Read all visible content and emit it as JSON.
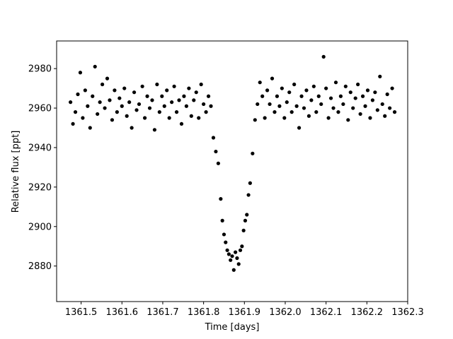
{
  "chart_data": {
    "type": "scatter",
    "title": "",
    "xlabel": "Time [days]",
    "ylabel": "Relative flux [ppt]",
    "xlim": [
      1361.44,
      1362.3
    ],
    "ylim": [
      2862,
      2994
    ],
    "xticks": [
      1361.5,
      1361.6,
      1361.7,
      1361.8,
      1361.9,
      1362.0,
      1362.1,
      1362.2,
      1362.3
    ],
    "xtick_labels": [
      "1361.5",
      "1361.6",
      "1361.7",
      "1361.8",
      "1361.9",
      "1362.0",
      "1362.1",
      "1362.2",
      "1362.3"
    ],
    "yticks": [
      2880,
      2900,
      2920,
      2940,
      2960,
      2980
    ],
    "ytick_labels": [
      "2880",
      "2900",
      "2920",
      "2940",
      "2960",
      "2980"
    ],
    "grid": false,
    "marker_color": "#000000",
    "series": [
      {
        "x": [
          1361.474,
          1361.48,
          1361.486,
          1361.492,
          1361.498,
          1361.504,
          1361.51,
          1361.516,
          1361.522,
          1361.528,
          1361.534,
          1361.54,
          1361.546,
          1361.552,
          1361.558,
          1361.564,
          1361.57,
          1361.576,
          1361.582,
          1361.588,
          1361.594,
          1361.6,
          1361.606,
          1361.612,
          1361.618,
          1361.624,
          1361.63,
          1361.636,
          1361.642,
          1361.65,
          1361.656,
          1361.662,
          1361.668,
          1361.674,
          1361.68,
          1361.686,
          1361.692,
          1361.698,
          1361.704,
          1361.71,
          1361.716,
          1361.722,
          1361.728,
          1361.734,
          1361.74,
          1361.746,
          1361.752,
          1361.758,
          1361.764,
          1361.77,
          1361.776,
          1361.782,
          1361.788,
          1361.794,
          1361.8,
          1361.806,
          1361.812,
          1361.818,
          1361.824,
          1361.83,
          1361.836,
          1361.842,
          1361.846,
          1361.85,
          1361.854,
          1361.858,
          1361.862,
          1361.866,
          1361.87,
          1361.874,
          1361.878,
          1361.882,
          1361.886,
          1361.89,
          1361.894,
          1361.898,
          1361.902,
          1361.906,
          1361.91,
          1361.914,
          1361.92,
          1361.926,
          1361.932,
          1361.938,
          1361.944,
          1361.95,
          1361.956,
          1361.962,
          1361.968,
          1361.974,
          1361.98,
          1361.986,
          1361.992,
          1361.998,
          1362.004,
          1362.01,
          1362.016,
          1362.022,
          1362.028,
          1362.034,
          1362.04,
          1362.046,
          1362.052,
          1362.058,
          1362.064,
          1362.07,
          1362.076,
          1362.082,
          1362.088,
          1362.094,
          1362.1,
          1362.106,
          1362.112,
          1362.118,
          1362.124,
          1362.13,
          1362.136,
          1362.142,
          1362.148,
          1362.154,
          1362.16,
          1362.166,
          1362.172,
          1362.178,
          1362.184,
          1362.19,
          1362.196,
          1362.202,
          1362.208,
          1362.214,
          1362.22,
          1362.226,
          1362.232,
          1362.238,
          1362.244,
          1362.25,
          1362.256,
          1362.262,
          1362.268
        ],
        "y": [
          2963,
          2952,
          2958,
          2967,
          2978,
          2955,
          2969,
          2961,
          2950,
          2966,
          2981,
          2957,
          2963,
          2972,
          2960,
          2975,
          2964,
          2954,
          2969,
          2958,
          2965,
          2961,
          2970,
          2956,
          2963,
          2950,
          2968,
          2959,
          2962,
          2971,
          2955,
          2966,
          2960,
          2964,
          2949,
          2972,
          2958,
          2966,
          2961,
          2969,
          2955,
          2963,
          2971,
          2958,
          2964,
          2952,
          2966,
          2961,
          2970,
          2956,
          2964,
          2968,
          2955,
          2972,
          2962,
          2958,
          2966,
          2961,
          2945,
          2938,
          2932,
          2914,
          2903,
          2896,
          2892,
          2888,
          2886,
          2883,
          2885,
          2878,
          2887,
          2884,
          2881,
          2888,
          2890,
          2898,
          2903,
          2906,
          2916,
          2922,
          2937,
          2954,
          2962,
          2973,
          2966,
          2955,
          2969,
          2962,
          2975,
          2958,
          2966,
          2961,
          2970,
          2955,
          2963,
          2968,
          2958,
          2972,
          2961,
          2950,
          2966,
          2960,
          2969,
          2956,
          2964,
          2971,
          2958,
          2966,
          2962,
          2986,
          2970,
          2955,
          2965,
          2960,
          2973,
          2958,
          2966,
          2962,
          2971,
          2954,
          2968,
          2960,
          2965,
          2972,
          2957,
          2966,
          2961,
          2969,
          2955,
          2964,
          2968,
          2959,
          2976,
          2962,
          2956,
          2967,
          2960,
          2970,
          2958
        ]
      }
    ]
  }
}
